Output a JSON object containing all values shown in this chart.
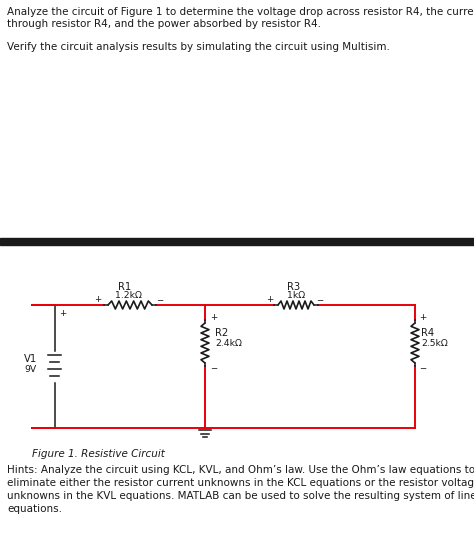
{
  "title_line1": "Analyze the circuit of Figure 1 to determine the voltage drop across resistor R4, the current",
  "title_line2": "through resistor R4, and the power absorbed by resistor R4.",
  "verify_text": "Verify the circuit analysis results by simulating the circuit using Multisim.",
  "figure_label": "Figure 1. Resistive Circuit",
  "hints_line1": "Hints: Analyze the circuit using KCL, KVL, and Ohm’s law. Use the Ohm’s law equations to",
  "hints_line2": "eliminate either the resistor current unknowns in the KCL equations or the resistor voltage",
  "hints_line3": "unknowns in the KVL equations. MATLAB can be used to solve the resulting system of linear",
  "hints_line4": "equations.",
  "bg_color": "#ffffff",
  "wire_color": "#e8000a",
  "component_color": "#1a1a1a",
  "text_color": "#1a1a1a",
  "divider_color": "#1a1a1a",
  "font_size_body": 7.5,
  "font_size_component": 7.2
}
